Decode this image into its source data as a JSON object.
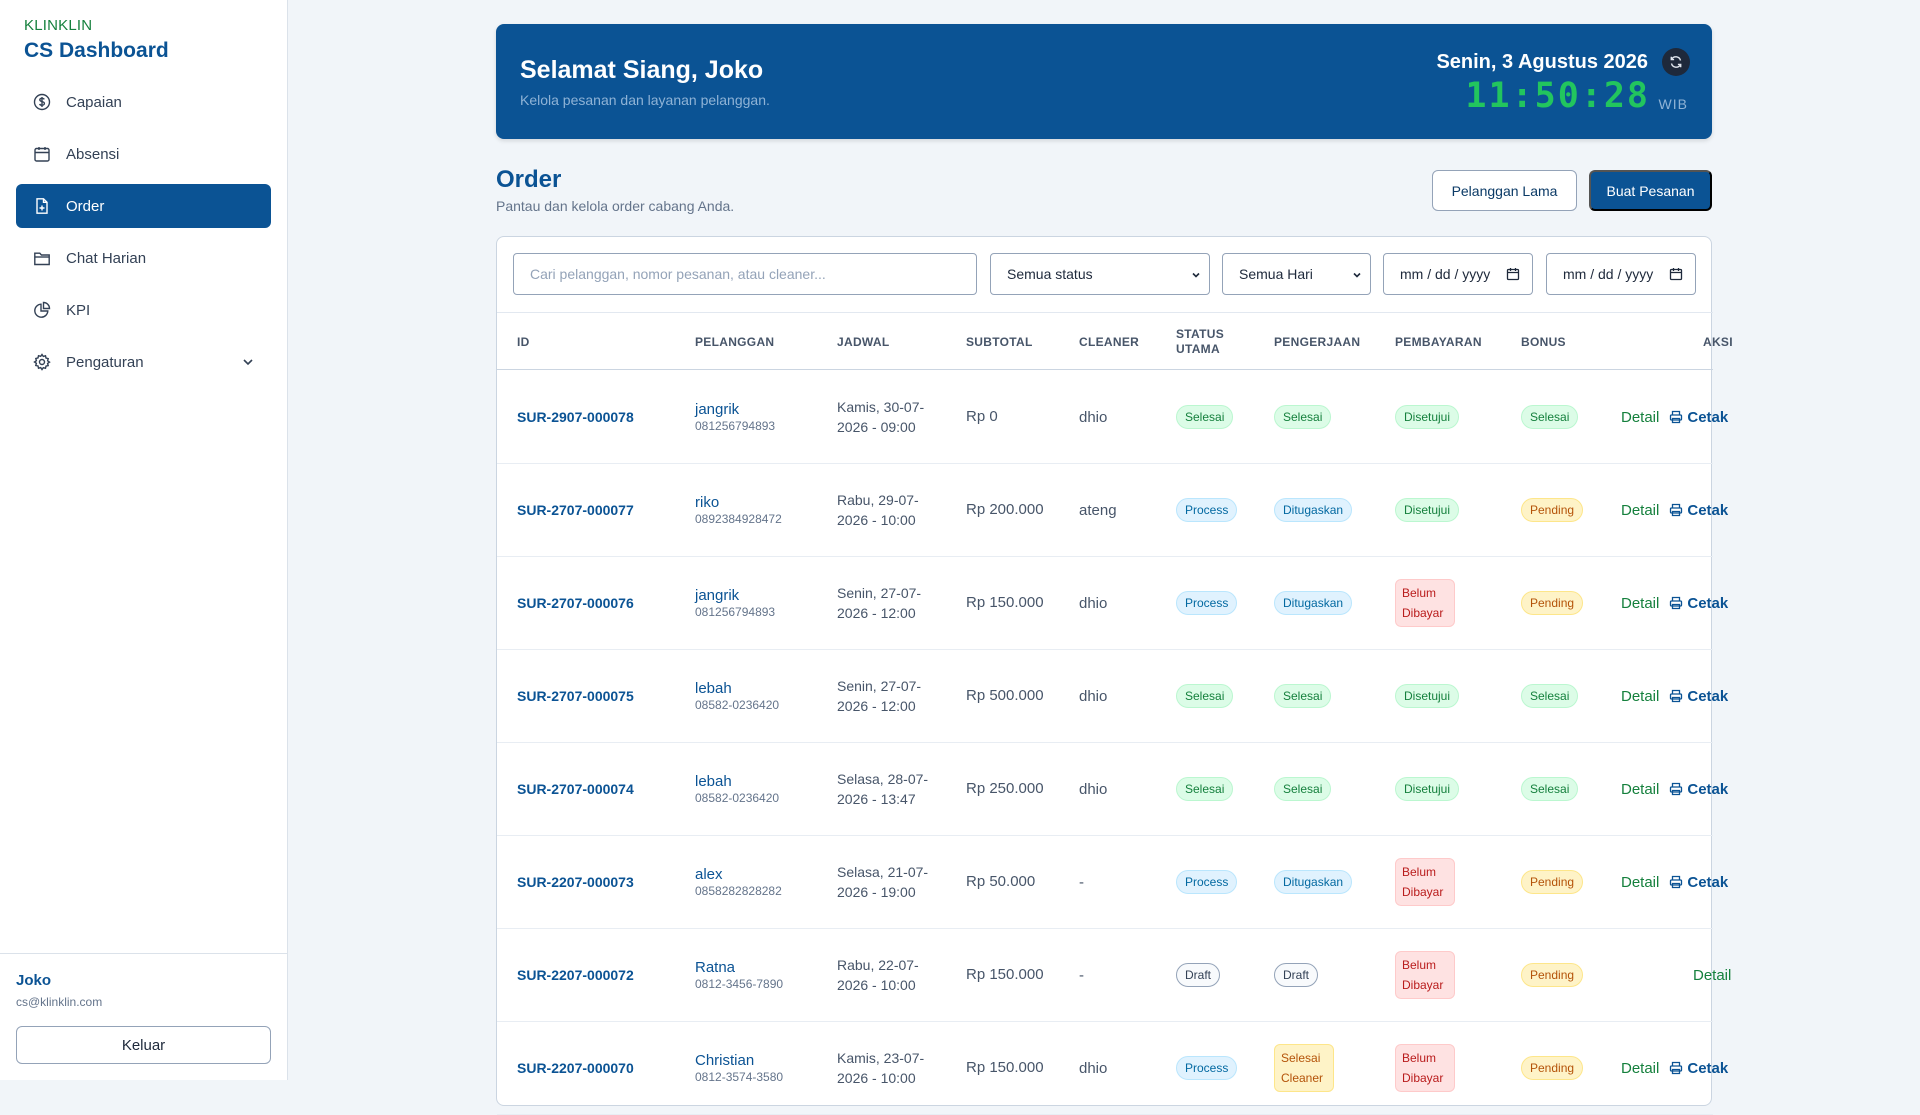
{
  "sidebar": {
    "brand_small": "KLINKLIN",
    "brand_title": "CS Dashboard",
    "items": [
      {
        "label": "Capaian",
        "icon": "dollar-circle-icon"
      },
      {
        "label": "Absensi",
        "icon": "calendar-icon"
      },
      {
        "label": "Order",
        "icon": "file-plus-icon",
        "active": true
      },
      {
        "label": "Chat Harian",
        "icon": "folder-icon"
      },
      {
        "label": "KPI",
        "icon": "pie-chart-icon"
      },
      {
        "label": "Pengaturan",
        "icon": "gear-icon"
      }
    ],
    "user_name": "Joko",
    "user_email": "cs@klinklin.com",
    "logout_label": "Keluar"
  },
  "hero": {
    "greeting": "Selamat Siang, Joko",
    "subtitle": "Kelola pesanan dan layanan pelanggan.",
    "date": "Senin, 3 Agustus 2026",
    "time": "11:50:28",
    "timezone": "WIB"
  },
  "page": {
    "title": "Order",
    "subtitle": "Pantau dan kelola order cabang Anda.",
    "btn_old_customer": "Pelanggan Lama",
    "btn_new_order": "Buat Pesanan"
  },
  "filters": {
    "search_placeholder": "Cari pelanggan, nomor pesanan, atau cleaner...",
    "status_value": "Semua status",
    "day_value": "Semua Hari",
    "date_from_placeholder": "mm / dd / yyyy",
    "date_to_placeholder": "mm / dd / yyyy"
  },
  "table": {
    "headers": {
      "id": "ID",
      "customer": "PELANGGAN",
      "schedule": "JADWAL",
      "subtotal": "SUBTOTAL",
      "cleaner": "CLEANER",
      "status_main": "STATUS UTAMA",
      "work": "PENGERJAAN",
      "payment": "PEMBAYARAN",
      "bonus": "BONUS",
      "action": "AKSI"
    },
    "detail_label": "Detail",
    "print_label": "Cetak",
    "rows": [
      {
        "id": "SUR-2907-000078",
        "name": "jangrik",
        "phone": "081256794893",
        "schedule": "Kamis, 30-07-2026 - 09:00",
        "subtotal": "Rp 0",
        "cleaner": "dhio",
        "status": "Selesai",
        "work": "Selesai",
        "payment": "Disetujui",
        "bonus": "Selesai"
      },
      {
        "id": "SUR-2707-000077",
        "name": "riko",
        "phone": "0892384928472",
        "schedule": "Rabu, 29-07-2026 - 10:00",
        "subtotal": "Rp 200.000",
        "cleaner": "ateng",
        "status": "Process",
        "work": "Ditugaskan",
        "payment": "Disetujui",
        "bonus": "Pending"
      },
      {
        "id": "SUR-2707-000076",
        "name": "jangrik",
        "phone": "081256794893",
        "schedule": "Senin, 27-07-2026 - 12:00",
        "subtotal": "Rp 150.000",
        "cleaner": "dhio",
        "status": "Process",
        "work": "Ditugaskan",
        "payment": "Belum Dibayar",
        "bonus": "Pending"
      },
      {
        "id": "SUR-2707-000075",
        "name": "lebah",
        "phone": "08582-0236420",
        "schedule": "Senin, 27-07-2026 - 12:00",
        "subtotal": "Rp 500.000",
        "cleaner": "dhio",
        "status": "Selesai",
        "work": "Selesai",
        "payment": "Disetujui",
        "bonus": "Selesai"
      },
      {
        "id": "SUR-2707-000074",
        "name": "lebah",
        "phone": "08582-0236420",
        "schedule": "Selasa, 28-07-2026 - 13:47",
        "subtotal": "Rp 250.000",
        "cleaner": "dhio",
        "status": "Selesai",
        "work": "Selesai",
        "payment": "Disetujui",
        "bonus": "Selesai"
      },
      {
        "id": "SUR-2207-000073",
        "name": "alex",
        "phone": "0858282828282",
        "schedule": "Selasa, 21-07-2026 - 19:00",
        "subtotal": "Rp 50.000",
        "cleaner": "-",
        "status": "Process",
        "work": "Ditugaskan",
        "payment": "Belum Dibayar",
        "bonus": "Pending"
      },
      {
        "id": "SUR-2207-000072",
        "name": "Ratna",
        "phone": "0812-3456-7890",
        "schedule": "Rabu, 22-07-2026 - 10:00",
        "subtotal": "Rp 150.000",
        "cleaner": "-",
        "status": "Draft",
        "work": "Draft",
        "payment": "Belum Dibayar",
        "bonus": "Pending"
      },
      {
        "id": "SUR-2207-000070",
        "name": "Christian",
        "phone": "0812-3574-3580",
        "schedule": "Kamis, 23-07-2026 - 10:00",
        "subtotal": "Rp 150.000",
        "cleaner": "dhio",
        "status": "Process",
        "work": "Selesai Cleaner",
        "payment": "Belum Dibayar",
        "bonus": "Pending"
      }
    ]
  }
}
